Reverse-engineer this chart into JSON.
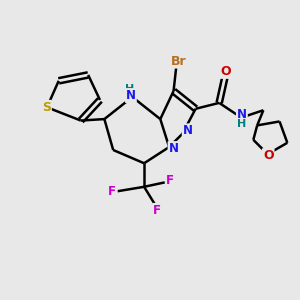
{
  "background_color": "#e8e8e8",
  "atom_colors": {
    "S": "#b8a000",
    "N": "#1a1aee",
    "Br": "#b87020",
    "F": "#cc00cc",
    "O": "#cc0000",
    "C": "#000000",
    "H": "#008080"
  },
  "bond_color": "#000000",
  "bond_width": 1.8,
  "figsize": [
    3.0,
    3.0
  ],
  "dpi": 100
}
